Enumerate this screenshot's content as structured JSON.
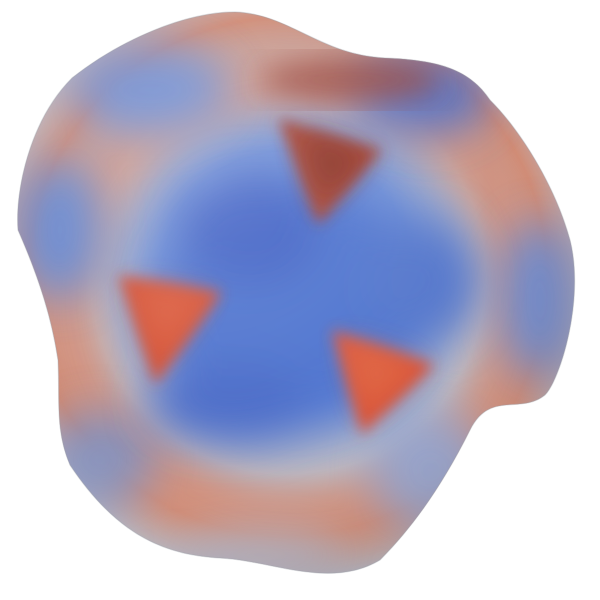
{
  "image": {
    "subject": "blob-mesh",
    "colormap": {
      "low": "#3f63c9",
      "mid": "#c9c9cf",
      "high": "#d44a32"
    },
    "background": "#ffffff"
  }
}
